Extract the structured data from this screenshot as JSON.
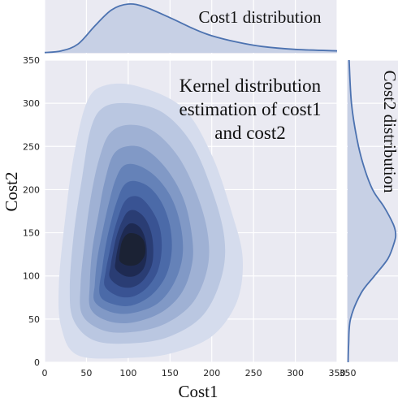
{
  "chart_data": {
    "type": "jointplot-kde",
    "title": "Kernel distribution estimation of cost1 and cost2",
    "title_lines": [
      "Kernel distribution",
      "estimation of cost1",
      "and cost2"
    ],
    "xlabel": "Cost1",
    "ylabel": "Cost2",
    "xlim": [
      0,
      350
    ],
    "ylim": [
      0,
      350
    ],
    "xticks": [
      "0",
      "50",
      "100",
      "150",
      "200",
      "250",
      "300",
      "350"
    ],
    "yticks": [
      "0",
      "50",
      "100",
      "150",
      "200",
      "250",
      "300",
      "350"
    ],
    "grid": true,
    "colors": {
      "background": "#eaeaf2",
      "marginal_line": "#4c72b0",
      "marginal_fill": "#c7d0e5",
      "contour_levels": [
        "#d5dced",
        "#bac7e1",
        "#9fb1d4",
        "#8199c6",
        "#6582b8",
        "#4b6aa8",
        "#395393",
        "#2a3d74",
        "#1e2a52",
        "#1b2234"
      ]
    },
    "kde_center": {
      "cost1": 100,
      "cost2": 145
    },
    "contours": [
      {
        "level": 1,
        "points": [
          [
            20,
            40
          ],
          [
            40,
            8
          ],
          [
            100,
            5
          ],
          [
            150,
            10
          ],
          [
            200,
            30
          ],
          [
            230,
            70
          ],
          [
            237,
            120
          ],
          [
            225,
            170
          ],
          [
            200,
            240
          ],
          [
            165,
            295
          ],
          [
            110,
            320
          ],
          [
            70,
            320
          ],
          [
            50,
            300
          ],
          [
            35,
            240
          ],
          [
            25,
            170
          ],
          [
            17,
            90
          ]
        ]
      },
      {
        "level": 2,
        "points": [
          [
            35,
            48
          ],
          [
            60,
            25
          ],
          [
            105,
            22
          ],
          [
            150,
            30
          ],
          [
            190,
            55
          ],
          [
            212,
            100
          ],
          [
            215,
            145
          ],
          [
            200,
            200
          ],
          [
            175,
            255
          ],
          [
            140,
            290
          ],
          [
            100,
            300
          ],
          [
            70,
            295
          ],
          [
            55,
            270
          ],
          [
            45,
            215
          ],
          [
            35,
            150
          ],
          [
            30,
            85
          ]
        ]
      },
      {
        "level": 3,
        "points": [
          [
            45,
            55
          ],
          [
            70,
            37
          ],
          [
            105,
            35
          ],
          [
            145,
            45
          ],
          [
            178,
            70
          ],
          [
            195,
            110
          ],
          [
            195,
            150
          ],
          [
            182,
            195
          ],
          [
            160,
            238
          ],
          [
            130,
            268
          ],
          [
            100,
            275
          ],
          [
            78,
            265
          ],
          [
            65,
            235
          ],
          [
            55,
            190
          ],
          [
            48,
            140
          ],
          [
            43,
            90
          ]
        ]
      },
      {
        "level": 4,
        "points": [
          [
            55,
            62
          ],
          [
            75,
            48
          ],
          [
            105,
            46
          ],
          [
            140,
            58
          ],
          [
            165,
            82
          ],
          [
            177,
            118
          ],
          [
            175,
            155
          ],
          [
            165,
            192
          ],
          [
            145,
            225
          ],
          [
            120,
            247
          ],
          [
            98,
            250
          ],
          [
            82,
            240
          ],
          [
            72,
            210
          ],
          [
            65,
            175
          ],
          [
            57,
            130
          ],
          [
            54,
            90
          ]
        ]
      },
      {
        "level": 5,
        "points": [
          [
            60,
            70
          ],
          [
            80,
            58
          ],
          [
            105,
            57
          ],
          [
            135,
            68
          ],
          [
            155,
            92
          ],
          [
            165,
            123
          ],
          [
            163,
            157
          ],
          [
            152,
            190
          ],
          [
            133,
            215
          ],
          [
            112,
            228
          ],
          [
            95,
            228
          ],
          [
            85,
            212
          ],
          [
            77,
            185
          ],
          [
            70,
            155
          ],
          [
            63,
            120
          ],
          [
            60,
            90
          ]
        ]
      },
      {
        "level": 6,
        "points": [
          [
            66,
            78
          ],
          [
            83,
            67
          ],
          [
            105,
            66
          ],
          [
            128,
            78
          ],
          [
            145,
            100
          ],
          [
            152,
            128
          ],
          [
            150,
            158
          ],
          [
            140,
            185
          ],
          [
            125,
            203
          ],
          [
            107,
            210
          ],
          [
            95,
            205
          ],
          [
            87,
            188
          ],
          [
            80,
            165
          ],
          [
            74,
            140
          ],
          [
            69,
            110
          ]
        ]
      },
      {
        "level": 7,
        "points": [
          [
            72,
            88
          ],
          [
            87,
            77
          ],
          [
            105,
            76
          ],
          [
            122,
            86
          ],
          [
            135,
            105
          ],
          [
            140,
            130
          ],
          [
            138,
            155
          ],
          [
            129,
            175
          ],
          [
            116,
            190
          ],
          [
            104,
            192
          ],
          [
            95,
            185
          ],
          [
            88,
            168
          ],
          [
            82,
            148
          ],
          [
            77,
            125
          ],
          [
            73,
            105
          ]
        ]
      },
      {
        "level": 8,
        "points": [
          [
            78,
            98
          ],
          [
            90,
            88
          ],
          [
            105,
            87
          ],
          [
            118,
            95
          ],
          [
            128,
            112
          ],
          [
            130,
            132
          ],
          [
            127,
            152
          ],
          [
            119,
            168
          ],
          [
            108,
            176
          ],
          [
            99,
            174
          ],
          [
            92,
            162
          ],
          [
            86,
            146
          ],
          [
            82,
            128
          ],
          [
            79,
            112
          ]
        ]
      },
      {
        "level": 9,
        "points": [
          [
            85,
            108
          ],
          [
            96,
            100
          ],
          [
            108,
            100
          ],
          [
            118,
            108
          ],
          [
            122,
            122
          ],
          [
            121,
            140
          ],
          [
            115,
            155
          ],
          [
            105,
            161
          ],
          [
            97,
            157
          ],
          [
            91,
            145
          ],
          [
            87,
            130
          ],
          [
            85,
            118
          ]
        ]
      },
      {
        "level": 10,
        "points": [
          [
            90,
            117
          ],
          [
            100,
            112
          ],
          [
            112,
            114
          ],
          [
            120,
            125
          ],
          [
            119,
            140
          ],
          [
            111,
            148
          ],
          [
            100,
            149
          ],
          [
            93,
            141
          ],
          [
            90,
            128
          ]
        ]
      }
    ],
    "marginal_x": {
      "label": "Cost1 distribution",
      "x": [
        0,
        20,
        40,
        60,
        80,
        100,
        120,
        150,
        180,
        200,
        230,
        260,
        300,
        350
      ],
      "density": [
        0.005,
        0.04,
        0.18,
        0.55,
        0.88,
        1.0,
        0.94,
        0.72,
        0.48,
        0.35,
        0.22,
        0.13,
        0.07,
        0.04
      ]
    },
    "marginal_y": {
      "label": "Cost2 distribution",
      "y": [
        0,
        20,
        50,
        80,
        100,
        120,
        140,
        150,
        160,
        180,
        200,
        230,
        260,
        300,
        350
      ],
      "density": [
        0.01,
        0.02,
        0.06,
        0.28,
        0.56,
        0.84,
        0.98,
        1.0,
        0.95,
        0.76,
        0.52,
        0.32,
        0.19,
        0.08,
        0.03
      ]
    }
  }
}
